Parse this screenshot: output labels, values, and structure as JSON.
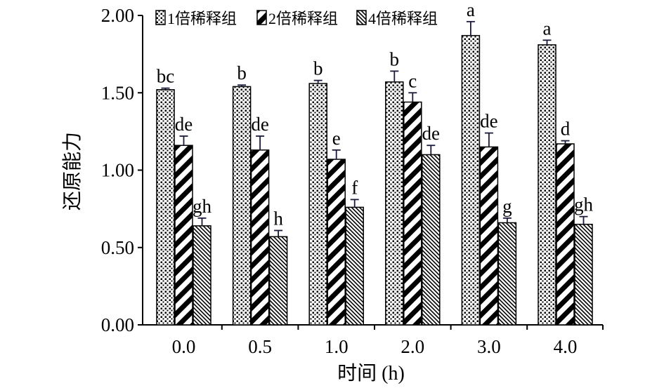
{
  "chart_data": {
    "type": "bar",
    "title": "",
    "xlabel": "时间 (h)",
    "ylabel": "还原能力",
    "categories": [
      "0.0",
      "0.5",
      "1.0",
      "2.0",
      "3.0",
      "4.0"
    ],
    "ylim": [
      0,
      2.0
    ],
    "yticks": [
      "0.00",
      "0.50",
      "1.00",
      "1.50",
      "2.00"
    ],
    "grid": false,
    "legend_position": "top",
    "series": [
      {
        "name": "1倍稀释组",
        "pattern": "dots",
        "values": [
          1.52,
          1.54,
          1.56,
          1.57,
          1.87,
          1.81
        ],
        "errors": [
          0.01,
          0.01,
          0.02,
          0.07,
          0.09,
          0.03
        ],
        "labels": [
          "bc",
          "b",
          "b",
          "b",
          "a",
          "a"
        ]
      },
      {
        "name": "2倍稀释组",
        "pattern": "diagonal-thick",
        "values": [
          1.16,
          1.13,
          1.07,
          1.44,
          1.15,
          1.17
        ],
        "errors": [
          0.06,
          0.09,
          0.06,
          0.06,
          0.09,
          0.02
        ],
        "labels": [
          "de",
          "de",
          "e",
          "c",
          "de",
          "d"
        ]
      },
      {
        "name": "4倍稀释组",
        "pattern": "diagonal-fine",
        "values": [
          0.64,
          0.57,
          0.76,
          1.1,
          0.66,
          0.65
        ],
        "errors": [
          0.05,
          0.04,
          0.05,
          0.06,
          0.03,
          0.05
        ],
        "labels": [
          "gh",
          "h",
          "f",
          "de",
          "g",
          "gh"
        ]
      }
    ]
  }
}
